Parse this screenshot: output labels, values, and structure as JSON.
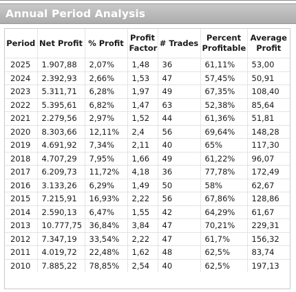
{
  "panel": {
    "title": "Annual Period Analysis"
  },
  "table": {
    "headers": [
      "Period",
      "Net Profit",
      "% Profit",
      "Profit Factor",
      "# Trades",
      "Percent Profitable",
      "Average Profit"
    ],
    "rows": [
      [
        "2025",
        "1.907,88",
        "2,07%",
        "1,48",
        "36",
        "61,11%",
        "53,00"
      ],
      [
        "2024",
        "2.392,93",
        "2,66%",
        "1,53",
        "47",
        "57,45%",
        "50,91"
      ],
      [
        "2023",
        "5.311,71",
        "6,28%",
        "1,97",
        "49",
        "67,35%",
        "108,40"
      ],
      [
        "2022",
        "5.395,61",
        "6,82%",
        "1,47",
        "63",
        "52,38%",
        "85,64"
      ],
      [
        "2021",
        "2.279,56",
        "2,97%",
        "1,52",
        "44",
        "61,36%",
        "51,81"
      ],
      [
        "2020",
        "8.303,66",
        "12,11%",
        "2,4",
        "56",
        "69,64%",
        "148,28"
      ],
      [
        "2019",
        "4.691,92",
        "7,34%",
        "2,11",
        "40",
        "65%",
        "117,30"
      ],
      [
        "2018",
        "4.707,29",
        "7,95%",
        "1,66",
        "49",
        "61,22%",
        "96,07"
      ],
      [
        "2017",
        "6.209,73",
        "11,72%",
        "4,18",
        "36",
        "77,78%",
        "172,49"
      ],
      [
        "2016",
        "3.133,26",
        "6,29%",
        "1,49",
        "50",
        "58%",
        "62,67"
      ],
      [
        "2015",
        "7.215,91",
        "16,93%",
        "2,22",
        "56",
        "67,86%",
        "128,86"
      ],
      [
        "2014",
        "2.590,13",
        "6,47%",
        "1,55",
        "42",
        "64,29%",
        "61,67"
      ],
      [
        "2013",
        "10.777,75",
        "36,84%",
        "3,84",
        "47",
        "70,21%",
        "229,31"
      ],
      [
        "2012",
        "7.347,19",
        "33,54%",
        "2,22",
        "47",
        "61,7%",
        "156,32"
      ],
      [
        "2011",
        "4.019,72",
        "22,48%",
        "1,62",
        "48",
        "62,5%",
        "83,74"
      ],
      [
        "2010",
        "7.885,22",
        "78,85%",
        "2,54",
        "40",
        "62,5%",
        "197,13"
      ]
    ]
  },
  "colors": {
    "title_bar": "#bcbcbc",
    "title_text": "#ffffff",
    "grid_line": "#e3e3e3",
    "text": "#1a1a1a"
  }
}
